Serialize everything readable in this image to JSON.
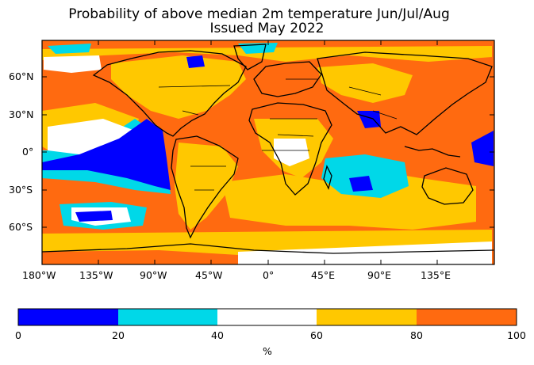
{
  "title_line1": "Probability of above median 2m temperature Jun/Jul/Aug",
  "title_line2": "Issued May 2022",
  "lat_labels": [
    "60°N",
    "30°N",
    "0°",
    "30°S",
    "60°S"
  ],
  "lon_labels": [
    "180°W",
    "135°W",
    "90°W",
    "45°W",
    "0°",
    "45°E",
    "90°E",
    "135°E"
  ],
  "colorbar": {
    "ticks": [
      "0",
      "20",
      "40",
      "60",
      "80",
      "100"
    ],
    "unit": "%",
    "bins": [
      {
        "range": "0-20",
        "color": "#0000ff"
      },
      {
        "range": "20-40",
        "color": "#00d8e8"
      },
      {
        "range": "40-60",
        "color": "#ffffff"
      },
      {
        "range": "60-80",
        "color": "#ffc800"
      },
      {
        "range": "80-100",
        "color": "#ff6a10"
      }
    ]
  },
  "colors": {
    "high": "#ff6a10",
    "mid_high": "#ffc800",
    "neutral": "#ffffff",
    "mid_low": "#00d8e8",
    "low": "#0000ff"
  }
}
